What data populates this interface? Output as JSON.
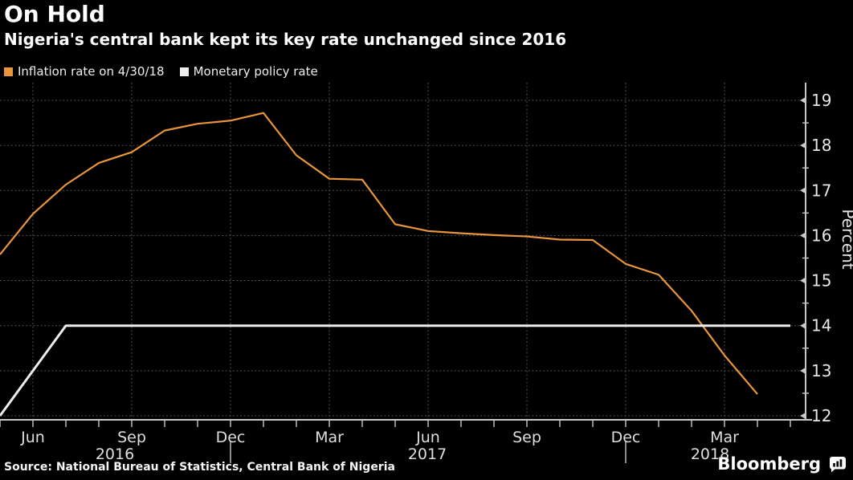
{
  "header": {
    "title": "On Hold",
    "subtitle": "Nigeria's central bank kept its key rate unchanged since 2016"
  },
  "legend": {
    "items": [
      {
        "label": "Inflation rate on 4/30/18",
        "color": "#E8953C"
      },
      {
        "label": "Monetary policy rate",
        "color": "#EDEDED"
      }
    ]
  },
  "chart_data": {
    "type": "line",
    "title": "On Hold",
    "subtitle": "Nigeria's central bank kept its key rate unchanged since 2016",
    "ylabel": "Percent",
    "ylim": [
      11.9,
      19.4
    ],
    "yticks": [
      12,
      13,
      14,
      15,
      16,
      17,
      18,
      19
    ],
    "y_minor_step": 0.5,
    "grid": "dotted",
    "legend_position": "top-left",
    "x_months": [
      "2016-05",
      "2016-06",
      "2016-07",
      "2016-08",
      "2016-09",
      "2016-10",
      "2016-11",
      "2016-12",
      "2017-01",
      "2017-02",
      "2017-03",
      "2017-04",
      "2017-05",
      "2017-06",
      "2017-07",
      "2017-08",
      "2017-09",
      "2017-10",
      "2017-11",
      "2017-12",
      "2018-01",
      "2018-02",
      "2018-03",
      "2018-04",
      "2018-05"
    ],
    "xticks": [
      {
        "m": 1,
        "label": "Jun"
      },
      {
        "m": 4,
        "label": "Sep"
      },
      {
        "m": 7,
        "label": "Dec"
      },
      {
        "m": 10,
        "label": "Mar"
      },
      {
        "m": 13,
        "label": "Jun"
      },
      {
        "m": 16,
        "label": "Sep"
      },
      {
        "m": 19,
        "label": "Dec"
      },
      {
        "m": 22,
        "label": "Mar"
      }
    ],
    "year_labels": [
      "2016",
      "2017",
      "2018"
    ],
    "year_divider_months": [
      "2016-12",
      "2017-12"
    ],
    "series": [
      {
        "name": "Inflation rate on 4/30/18",
        "color": "#E8953C",
        "unit": "percent",
        "start": "2016-05",
        "values": [
          15.58,
          16.48,
          17.13,
          17.61,
          17.85,
          18.33,
          18.48,
          18.55,
          18.72,
          17.78,
          17.26,
          17.24,
          16.25,
          16.1,
          16.05,
          16.01,
          15.98,
          15.91,
          15.9,
          15.37,
          15.13,
          14.33,
          13.34,
          12.48
        ]
      },
      {
        "name": "Monetary policy rate",
        "color": "#EDEDED",
        "unit": "percent",
        "points": [
          [
            "2016-05",
            12
          ],
          [
            "2016-07",
            14
          ],
          [
            "2018-05",
            14
          ]
        ]
      }
    ]
  },
  "footer": {
    "source": "Source: National Bureau of Statistics, Central Bank of Nigeria",
    "brand": "Bloomberg"
  }
}
